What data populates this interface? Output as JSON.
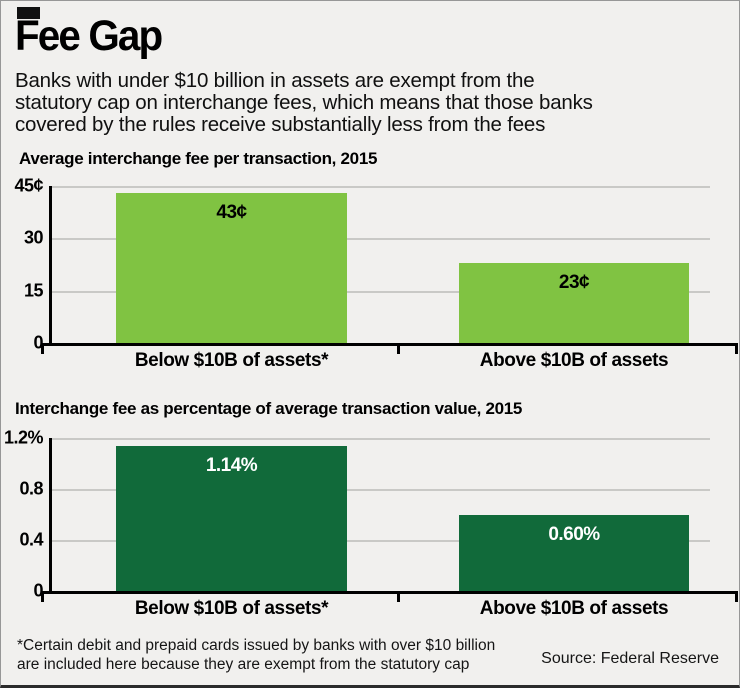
{
  "header": {
    "title": "Fee Gap",
    "subtitle": "Banks with under $10 billion in assets are exempt from the statutory cap on interchange fees, which means that those banks covered by the rules receive substantially less from the fees",
    "subtitle_lines": [
      "Banks with under $10 billion in assets are exempt from the",
      "statutory cap on interchange fees, which means that those banks",
      "covered by the rules receive substantially less from the fees"
    ]
  },
  "chart_data": [
    {
      "type": "bar",
      "title": "Average interchange fee per transaction, 2015",
      "categories": [
        "Below $10B of assets*",
        "Above $10B of assets"
      ],
      "values": [
        43,
        23
      ],
      "value_labels": [
        "43¢",
        "23¢"
      ],
      "unit": "cents per transaction",
      "ylim": [
        0,
        45
      ],
      "yticks": [
        0,
        15,
        30,
        45
      ],
      "ytick_labels": [
        "0",
        "15",
        "30",
        "45¢"
      ],
      "grid": true,
      "legend": false,
      "bar_color": "#80c342",
      "value_label_color": "#000000"
    },
    {
      "type": "bar",
      "title": "Interchange fee as percentage of average transaction value, 2015",
      "categories": [
        "Below $10B of assets*",
        "Above $10B of assets"
      ],
      "values": [
        1.14,
        0.6
      ],
      "value_labels": [
        "1.14%",
        "0.60%"
      ],
      "unit": "percent of transaction value",
      "ylim": [
        0,
        1.2
      ],
      "yticks": [
        0,
        0.4,
        0.8,
        1.2
      ],
      "ytick_labels": [
        "0",
        "0.4",
        "0.8",
        "1.2%"
      ],
      "grid": true,
      "legend": false,
      "bar_color": "#116a3a",
      "value_label_color": "#ffffff"
    }
  ],
  "footer": {
    "footnote": "*Certain debit and prepaid cards issued by banks with over $10 billion are included here because they are exempt from the statutory cap",
    "footnote_lines": [
      "*Certain debit and prepaid cards issued by banks with over $10 billion",
      "are included here because they are exempt from the statutory cap"
    ],
    "source": "Source: Federal Reserve"
  },
  "colors": {
    "background": "#f1f0ee",
    "bar_light_green": "#80c342",
    "bar_dark_green": "#116a3a",
    "grid_line": "#c9c9c6",
    "axis": "#000000"
  }
}
